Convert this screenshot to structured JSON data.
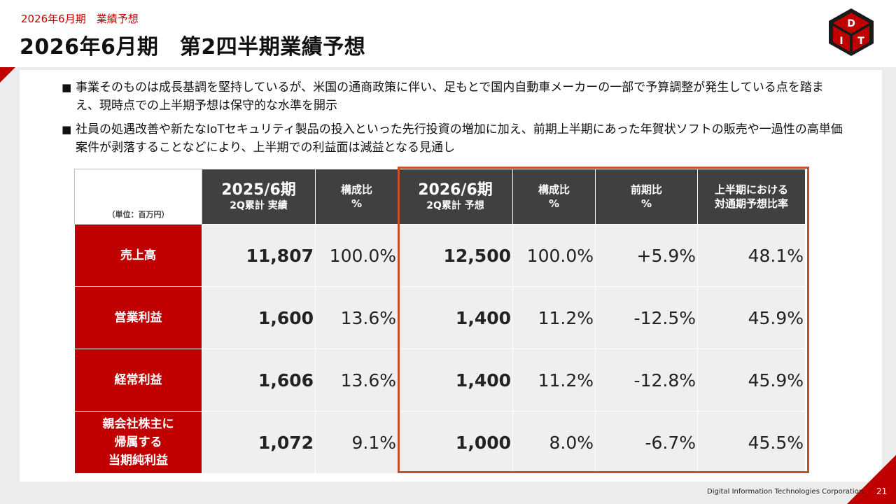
{
  "header": {
    "breadcrumb": "2026年6月期　業績予想",
    "title": "2026年6月期　第2四半期業績予想"
  },
  "logo": {
    "letters": [
      "D",
      "I",
      "T"
    ],
    "colors": {
      "red": "#c00000",
      "dark": "#1a1a1a",
      "white": "#ffffff"
    }
  },
  "bullets": [
    {
      "mark": "■",
      "text": "事業そのものは成長基調を堅持しているが、米国の通商政策に伴い、足もとで国内自動車メーカーの一部で予算調整が発生している点を踏まえ、現時点での上半期予想は保守的な水準を開示"
    },
    {
      "mark": "■",
      "text": "社員の処遇改善や新たなIoTセキュリティ製品の投入といった先行投資の増加に加え、前期上半期にあった年賀状ソフトの販売や一過性の高単価案件が剥落することなどにより、上半期での利益面は減益となる見通し"
    }
  ],
  "table": {
    "unit_label": "（単位：百万円）",
    "columns": [
      {
        "line1": "2025/6期",
        "line2": "2Q累計 実績"
      },
      {
        "line1": "構成比",
        "line2": "%"
      },
      {
        "line1": "2026/6期",
        "line2": "2Q累計 予想"
      },
      {
        "line1": "構成比",
        "line2": "%"
      },
      {
        "line1": "前期比",
        "line2": "%"
      },
      {
        "line1": "上半期における",
        "line2": "対通期予想比率"
      }
    ],
    "rows": [
      {
        "label": "売上高",
        "prev_actual": "11,807",
        "prev_ratio": "100.0%",
        "forecast": "12,500",
        "forecast_ratio": "100.0%",
        "yoy": "+5.9%",
        "progress": "48.1%"
      },
      {
        "label": "営業利益",
        "prev_actual": "1,600",
        "prev_ratio": "13.6%",
        "forecast": "1,400",
        "forecast_ratio": "11.2%",
        "yoy": "-12.5%",
        "progress": "45.9%"
      },
      {
        "label": "経常利益",
        "prev_actual": "1,606",
        "prev_ratio": "13.6%",
        "forecast": "1,400",
        "forecast_ratio": "11.2%",
        "yoy": "-12.8%",
        "progress": "45.9%"
      },
      {
        "label_lines": [
          "親会社株主に",
          "帰属する",
          "当期純利益"
        ],
        "prev_actual": "1,072",
        "prev_ratio": "9.1%",
        "forecast": "1,000",
        "forecast_ratio": "8.0%",
        "yoy": "-6.7%",
        "progress": "45.5%"
      }
    ]
  },
  "footer": {
    "company": "Digital Information Technologies Corporation.",
    "page_number": "21"
  },
  "colors": {
    "accent_red": "#c00000",
    "header_gray": "#404040",
    "cell_gray": "#efefef",
    "highlight_border": "#c0522d"
  }
}
